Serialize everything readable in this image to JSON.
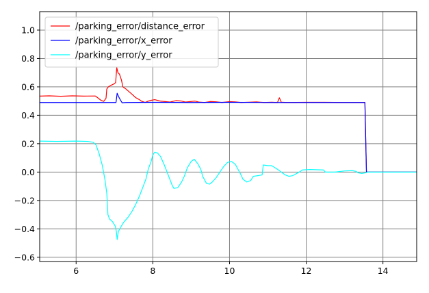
{
  "chart_data": {
    "type": "line",
    "title": "",
    "xlabel": "",
    "ylabel": "",
    "xlim": [
      5.05,
      14.88
    ],
    "ylim": [
      -0.63,
      1.13
    ],
    "xticks": [
      6,
      8,
      10,
      12,
      14
    ],
    "yticks": [
      -0.6,
      -0.4,
      -0.2,
      0.0,
      0.2,
      0.4,
      0.6,
      0.8,
      1.0
    ],
    "xtick_labels": [
      "6",
      "8",
      "10",
      "12",
      "14"
    ],
    "ytick_labels": [
      "−0.6",
      "−0.4",
      "−0.2",
      "0.0",
      "0.2",
      "0.4",
      "0.6",
      "0.8",
      "1.0"
    ],
    "grid": true,
    "legend_position": "upper-left",
    "series": [
      {
        "name": "/parking_error/distance_error",
        "color": "#ff0000",
        "points": [
          [
            5.05,
            0.535
          ],
          [
            5.3,
            0.537
          ],
          [
            5.6,
            0.534
          ],
          [
            5.9,
            0.537
          ],
          [
            6.2,
            0.535
          ],
          [
            6.5,
            0.536
          ],
          [
            6.52,
            0.532
          ],
          [
            6.58,
            0.52
          ],
          [
            6.65,
            0.505
          ],
          [
            6.72,
            0.498
          ],
          [
            6.78,
            0.52
          ],
          [
            6.8,
            0.585
          ],
          [
            6.84,
            0.6
          ],
          [
            6.9,
            0.61
          ],
          [
            6.98,
            0.62
          ],
          [
            7.03,
            0.63
          ],
          [
            7.06,
            0.735
          ],
          [
            7.09,
            0.7
          ],
          [
            7.13,
            0.69
          ],
          [
            7.18,
            0.65
          ],
          [
            7.22,
            0.6
          ],
          [
            7.3,
            0.585
          ],
          [
            7.45,
            0.55
          ],
          [
            7.55,
            0.525
          ],
          [
            7.65,
            0.51
          ],
          [
            7.7,
            0.5
          ],
          [
            7.8,
            0.49
          ],
          [
            7.88,
            0.5
          ],
          [
            7.95,
            0.505
          ],
          [
            8.05,
            0.51
          ],
          [
            8.12,
            0.505
          ],
          [
            8.2,
            0.5
          ],
          [
            8.3,
            0.497
          ],
          [
            8.45,
            0.493
          ],
          [
            8.6,
            0.503
          ],
          [
            8.75,
            0.5
          ],
          [
            8.85,
            0.493
          ],
          [
            9.0,
            0.497
          ],
          [
            9.1,
            0.5
          ],
          [
            9.2,
            0.493
          ],
          [
            9.35,
            0.49
          ],
          [
            9.5,
            0.497
          ],
          [
            9.65,
            0.495
          ],
          [
            9.8,
            0.49
          ],
          [
            10.0,
            0.496
          ],
          [
            10.15,
            0.494
          ],
          [
            10.3,
            0.49
          ],
          [
            10.5,
            0.492
          ],
          [
            10.7,
            0.494
          ],
          [
            10.9,
            0.49
          ],
          [
            11.1,
            0.492
          ],
          [
            11.25,
            0.49
          ],
          [
            11.3,
            0.523
          ],
          [
            11.35,
            0.492
          ],
          [
            11.5,
            0.49
          ],
          [
            12.0,
            0.491
          ],
          [
            12.5,
            0.491
          ],
          [
            13.0,
            0.49
          ],
          [
            13.5,
            0.49
          ],
          [
            13.53,
            0.49
          ],
          [
            13.57,
            0.0
          ],
          [
            14.0,
            0.0
          ],
          [
            14.5,
            0.0
          ],
          [
            14.88,
            0.0
          ]
        ]
      },
      {
        "name": "/parking_error/x_error",
        "color": "#0000ff",
        "points": [
          [
            5.05,
            0.49
          ],
          [
            6.0,
            0.49
          ],
          [
            7.04,
            0.49
          ],
          [
            7.07,
            0.555
          ],
          [
            7.11,
            0.53
          ],
          [
            7.15,
            0.51
          ],
          [
            7.2,
            0.488
          ],
          [
            7.3,
            0.49
          ],
          [
            8.0,
            0.491
          ],
          [
            9.0,
            0.49
          ],
          [
            10.0,
            0.491
          ],
          [
            11.0,
            0.49
          ],
          [
            12.0,
            0.49
          ],
          [
            13.0,
            0.49
          ],
          [
            13.53,
            0.49
          ],
          [
            13.57,
            0.0
          ],
          [
            14.88,
            0.0
          ]
        ]
      },
      {
        "name": "/parking_error/y_error",
        "color": "#00ffff",
        "points": [
          [
            5.05,
            0.218
          ],
          [
            5.5,
            0.216
          ],
          [
            6.0,
            0.218
          ],
          [
            6.3,
            0.216
          ],
          [
            6.45,
            0.21
          ],
          [
            6.52,
            0.19
          ],
          [
            6.6,
            0.13
          ],
          [
            6.68,
            0.05
          ],
          [
            6.75,
            -0.05
          ],
          [
            6.8,
            -0.15
          ],
          [
            6.83,
            -0.3
          ],
          [
            6.87,
            -0.33
          ],
          [
            6.95,
            -0.35
          ],
          [
            7.02,
            -0.38
          ],
          [
            7.05,
            -0.42
          ],
          [
            7.07,
            -0.475
          ],
          [
            7.1,
            -0.42
          ],
          [
            7.18,
            -0.38
          ],
          [
            7.25,
            -0.35
          ],
          [
            7.35,
            -0.32
          ],
          [
            7.45,
            -0.28
          ],
          [
            7.55,
            -0.23
          ],
          [
            7.65,
            -0.17
          ],
          [
            7.75,
            -0.1
          ],
          [
            7.82,
            -0.05
          ],
          [
            7.88,
            0.02
          ],
          [
            7.95,
            0.07
          ],
          [
            8.0,
            0.12
          ],
          [
            8.05,
            0.14
          ],
          [
            8.12,
            0.135
          ],
          [
            8.2,
            0.11
          ],
          [
            8.3,
            0.05
          ],
          [
            8.4,
            -0.02
          ],
          [
            8.5,
            -0.09
          ],
          [
            8.55,
            -0.115
          ],
          [
            8.65,
            -0.11
          ],
          [
            8.75,
            -0.07
          ],
          [
            8.82,
            -0.03
          ],
          [
            8.9,
            0.03
          ],
          [
            9.0,
            0.075
          ],
          [
            9.08,
            0.09
          ],
          [
            9.17,
            0.06
          ],
          [
            9.25,
            0.02
          ],
          [
            9.3,
            -0.03
          ],
          [
            9.4,
            -0.08
          ],
          [
            9.48,
            -0.085
          ],
          [
            9.55,
            -0.07
          ],
          [
            9.65,
            -0.04
          ],
          [
            9.75,
            0.0
          ],
          [
            9.85,
            0.04
          ],
          [
            9.95,
            0.068
          ],
          [
            10.05,
            0.075
          ],
          [
            10.15,
            0.055
          ],
          [
            10.2,
            0.03
          ],
          [
            10.3,
            -0.02
          ],
          [
            10.35,
            -0.05
          ],
          [
            10.45,
            -0.07
          ],
          [
            10.55,
            -0.06
          ],
          [
            10.62,
            -0.03
          ],
          [
            10.75,
            -0.025
          ],
          [
            10.85,
            -0.02
          ],
          [
            10.88,
            0.05
          ],
          [
            11.0,
            0.045
          ],
          [
            11.1,
            0.045
          ],
          [
            11.25,
            0.02
          ],
          [
            11.35,
            0.0
          ],
          [
            11.45,
            -0.02
          ],
          [
            11.55,
            -0.03
          ],
          [
            11.65,
            -0.025
          ],
          [
            11.75,
            -0.01
          ],
          [
            11.85,
            0.005
          ],
          [
            11.9,
            0.015
          ],
          [
            12.1,
            0.018
          ],
          [
            12.3,
            0.016
          ],
          [
            12.45,
            0.015
          ],
          [
            12.5,
            0.0
          ],
          [
            12.75,
            0.0
          ],
          [
            13.0,
            0.008
          ],
          [
            13.2,
            0.01
          ],
          [
            13.3,
            0.005
          ],
          [
            13.35,
            -0.005
          ],
          [
            13.45,
            -0.01
          ],
          [
            13.55,
            -0.005
          ],
          [
            13.6,
            0.0
          ],
          [
            14.0,
            0.0
          ],
          [
            14.5,
            0.0
          ],
          [
            14.88,
            0.0
          ]
        ]
      }
    ]
  }
}
